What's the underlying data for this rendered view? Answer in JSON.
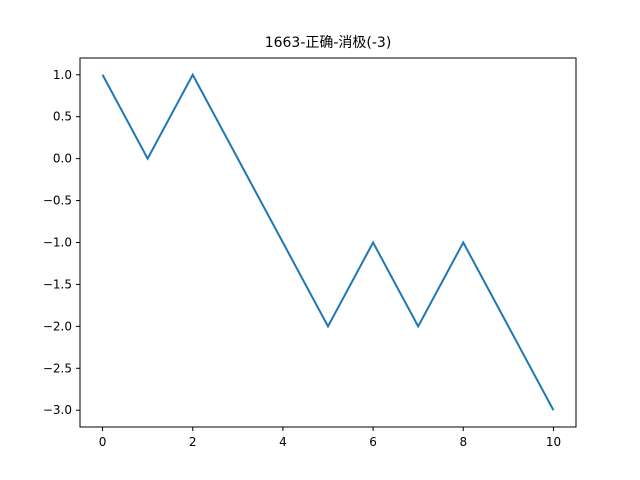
{
  "chart_data": {
    "type": "line",
    "title": "1663-正确-消极(-3)",
    "xlabel": "",
    "ylabel": "",
    "x": [
      0,
      1,
      2,
      3,
      4,
      5,
      6,
      7,
      8,
      9,
      10
    ],
    "series": [
      {
        "values": [
          1,
          0,
          1,
          0,
          -1,
          -2,
          -1,
          -2,
          -1,
          -2,
          -3
        ],
        "color": "#1f77b4"
      }
    ],
    "xlim": [
      -0.5,
      10.5
    ],
    "ylim": [
      -3.2,
      1.2
    ],
    "xticks": [
      0,
      2,
      4,
      6,
      8,
      10
    ],
    "xtick_labels": [
      "0",
      "2",
      "4",
      "6",
      "8",
      "10"
    ],
    "yticks": [
      1.0,
      0.5,
      0.0,
      -0.5,
      -1.0,
      -1.5,
      -2.0,
      -2.5,
      -3.0
    ],
    "ytick_labels": [
      "1.0",
      "0.5",
      "0.0",
      "−0.5",
      "−1.0",
      "−1.5",
      "−2.0",
      "−2.5",
      "−3.0"
    ],
    "grid": false,
    "legend": "none"
  }
}
